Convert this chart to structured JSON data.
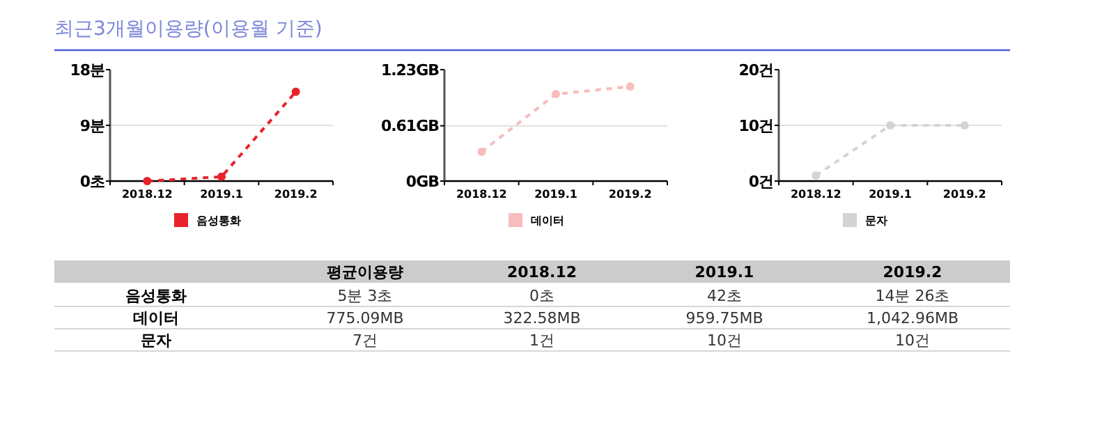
{
  "chart_data": [
    {
      "type": "line",
      "title": "최근3개월이용량(이용월 기준)",
      "categories": [
        "2018.12",
        "2019.1",
        "2019.2"
      ],
      "series": [
        {
          "name": "음성통화",
          "color": "#e8222a",
          "values": [
            0,
            0.7,
            14.43
          ]
        }
      ],
      "ylim": [
        0,
        18
      ],
      "yticks": [
        {
          "value": 0,
          "label": "0초"
        },
        {
          "value": 9,
          "label": "9분"
        },
        {
          "value": 18,
          "label": "18분"
        }
      ],
      "grid": "y",
      "legend": "bottom",
      "marker": "circle",
      "line_style": "dashed"
    },
    {
      "type": "line",
      "categories": [
        "2018.12",
        "2019.1",
        "2019.2"
      ],
      "series": [
        {
          "name": "데이터",
          "color": "#f7bcbc",
          "values": [
            0.323,
            0.96,
            1.043
          ]
        }
      ],
      "ylim": [
        0,
        1.23
      ],
      "yticks": [
        {
          "value": 0,
          "label": "0GB"
        },
        {
          "value": 0.61,
          "label": "0.61GB"
        },
        {
          "value": 1.23,
          "label": "1.23GB"
        }
      ],
      "grid": "y",
      "legend": "bottom",
      "marker": "circle",
      "line_style": "dashed"
    },
    {
      "type": "line",
      "categories": [
        "2018.12",
        "2019.1",
        "2019.2"
      ],
      "series": [
        {
          "name": "문자",
          "color": "#d3d3d3",
          "values": [
            1,
            10,
            10
          ]
        }
      ],
      "ylim": [
        0,
        20
      ],
      "yticks": [
        {
          "value": 0,
          "label": "0건"
        },
        {
          "value": 10,
          "label": "10건"
        },
        {
          "value": 20,
          "label": "20건"
        }
      ],
      "grid": "y",
      "legend": "bottom",
      "marker": "circle",
      "line_style": "dashed"
    },
    {
      "type": "other",
      "categories": [
        "평균이용량",
        "2018.12",
        "2019.1",
        "2019.2"
      ],
      "y_categories": [
        "음성통화",
        "데이터",
        "문자"
      ],
      "cell_labels": [
        [
          "5분 3초",
          "0초",
          "42초",
          "14분 26초"
        ],
        [
          "775.09MB",
          "322.58MB",
          "959.75MB",
          "1,042.96MB"
        ],
        [
          "7건",
          "1건",
          "10건",
          "10건"
        ]
      ]
    }
  ]
}
